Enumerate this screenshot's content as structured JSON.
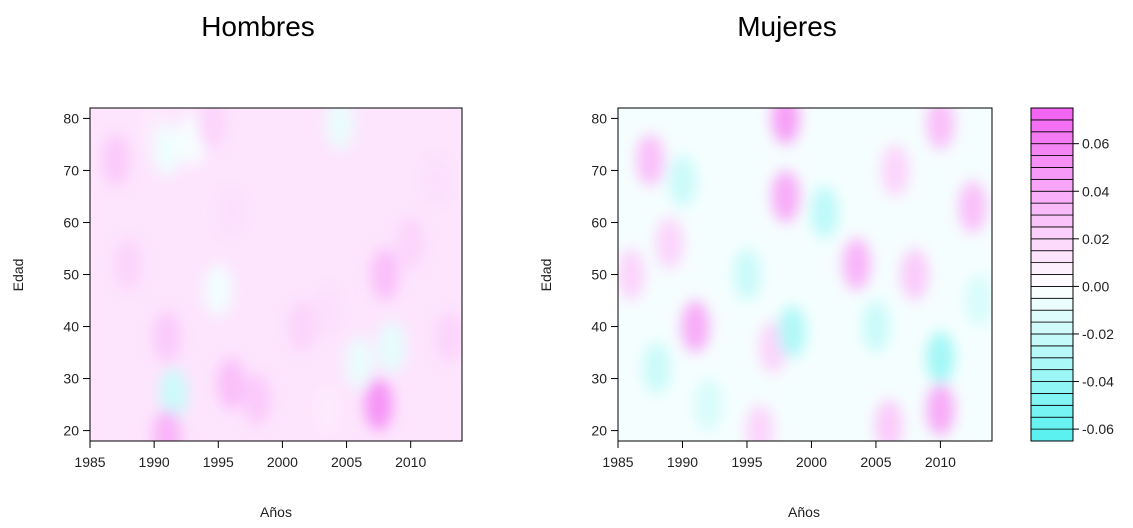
{
  "chart_data": [
    {
      "type": "heatmap",
      "title": "Hombres",
      "xlabel": "Años",
      "ylabel": "Edad",
      "xlim": [
        1985,
        2014
      ],
      "ylim": [
        18,
        82
      ],
      "xticks": [
        1985,
        1990,
        1995,
        2000,
        2005,
        2010
      ],
      "yticks": [
        20,
        30,
        40,
        50,
        60,
        70,
        80
      ],
      "blobs": [
        {
          "x": 1987,
          "y": 72,
          "value": 0.025
        },
        {
          "x": 1988,
          "y": 52,
          "value": 0.02
        },
        {
          "x": 1990,
          "y": 78,
          "value": 0.01
        },
        {
          "x": 1991,
          "y": 74,
          "value": -0.006
        },
        {
          "x": 1993,
          "y": 76,
          "value": -0.003
        },
        {
          "x": 1991,
          "y": 38,
          "value": 0.025
        },
        {
          "x": 1991.5,
          "y": 27,
          "value": -0.02
        },
        {
          "x": 1991,
          "y": 19,
          "value": 0.035
        },
        {
          "x": 1994.5,
          "y": 79,
          "value": 0.02
        },
        {
          "x": 1996,
          "y": 29,
          "value": 0.03
        },
        {
          "x": 1998,
          "y": 26,
          "value": 0.025
        },
        {
          "x": 1996,
          "y": 62,
          "value": 0.015
        },
        {
          "x": 1995,
          "y": 47,
          "value": -0.005
        },
        {
          "x": 2001.5,
          "y": 40,
          "value": 0.02
        },
        {
          "x": 2003.5,
          "y": 43,
          "value": 0.015
        },
        {
          "x": 2003.5,
          "y": 24,
          "value": 0.01
        },
        {
          "x": 2004.5,
          "y": 79,
          "value": -0.008
        },
        {
          "x": 2006,
          "y": 33,
          "value": -0.008
        },
        {
          "x": 2008,
          "y": 50,
          "value": 0.03
        },
        {
          "x": 2008.5,
          "y": 36,
          "value": -0.01
        },
        {
          "x": 2007.5,
          "y": 25,
          "value": 0.05
        },
        {
          "x": 2010,
          "y": 56,
          "value": 0.02
        },
        {
          "x": 2012,
          "y": 68,
          "value": 0.015
        },
        {
          "x": 2013,
          "y": 38,
          "value": 0.02
        }
      ]
    },
    {
      "type": "heatmap",
      "title": "Mujeres",
      "xlabel": "Años",
      "ylabel": "Edad",
      "xlim": [
        1985,
        2014
      ],
      "ylim": [
        18,
        82
      ],
      "xticks": [
        1985,
        1990,
        1995,
        2000,
        2005,
        2010
      ],
      "yticks": [
        20,
        30,
        40,
        50,
        60,
        70,
        80
      ],
      "colorbar": {
        "ticks": [
          0.06,
          0.04,
          0.02,
          0.0,
          -0.02,
          -0.04,
          -0.06
        ],
        "tick_labels": [
          "0.06",
          "0.04",
          "0.02",
          "0.00",
          "-0.02",
          "-0.04",
          "-0.06"
        ],
        "range": [
          -0.065,
          0.075
        ],
        "low_color": "#55f0f0",
        "high_color": "#f25ff2"
      },
      "blobs": [
        {
          "x": 1986,
          "y": 50,
          "value": 0.02
        },
        {
          "x": 1987.5,
          "y": 72,
          "value": 0.03
        },
        {
          "x": 1989,
          "y": 56,
          "value": 0.02
        },
        {
          "x": 1988,
          "y": 32,
          "value": -0.02
        },
        {
          "x": 1991,
          "y": 40,
          "value": 0.04
        },
        {
          "x": 1990,
          "y": 68,
          "value": -0.02
        },
        {
          "x": 1992,
          "y": 25,
          "value": -0.015
        },
        {
          "x": 1995,
          "y": 50,
          "value": -0.02
        },
        {
          "x": 1997,
          "y": 36,
          "value": 0.02
        },
        {
          "x": 1998,
          "y": 80,
          "value": 0.045
        },
        {
          "x": 1998,
          "y": 65,
          "value": 0.04
        },
        {
          "x": 1998.5,
          "y": 39,
          "value": -0.03
        },
        {
          "x": 2001,
          "y": 62,
          "value": -0.025
        },
        {
          "x": 2003.5,
          "y": 52,
          "value": 0.035
        },
        {
          "x": 2005,
          "y": 40,
          "value": -0.02
        },
        {
          "x": 2006.5,
          "y": 70,
          "value": 0.02
        },
        {
          "x": 2008,
          "y": 50,
          "value": 0.025
        },
        {
          "x": 2010,
          "y": 79,
          "value": 0.03
        },
        {
          "x": 2010,
          "y": 34,
          "value": -0.035
        },
        {
          "x": 2010,
          "y": 24,
          "value": 0.04
        },
        {
          "x": 2012.5,
          "y": 63,
          "value": 0.03
        },
        {
          "x": 2013,
          "y": 45,
          "value": -0.015
        },
        {
          "x": 1996,
          "y": 20,
          "value": 0.02
        },
        {
          "x": 2006,
          "y": 21,
          "value": 0.025
        }
      ]
    }
  ]
}
